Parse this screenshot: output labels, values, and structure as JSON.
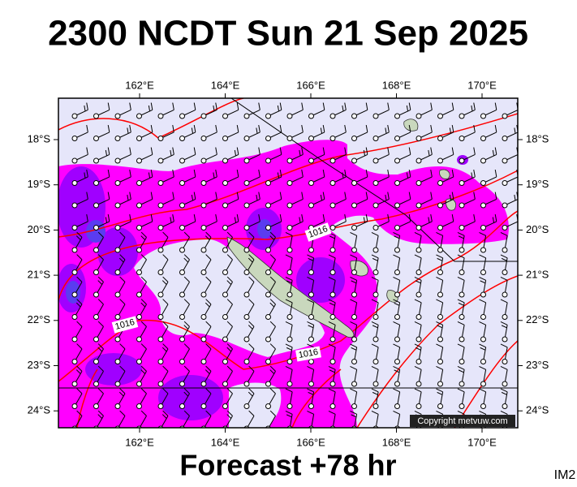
{
  "header": {
    "title": "2300 NCDT Sun 21 Sep 2025"
  },
  "map": {
    "lon_labels": [
      "162°E",
      "164°E",
      "166°E",
      "168°E",
      "170°E"
    ],
    "lat_labels": [
      "18°S",
      "19°S",
      "20°S",
      "21°S",
      "22°S",
      "23°S",
      "24°S"
    ],
    "isobar_labels": [
      "1016",
      "1016",
      "1016"
    ],
    "copyright": "Copyright metvuw.com"
  },
  "footer": {
    "forecast": "Forecast +78 hr",
    "code": "IM2"
  }
}
